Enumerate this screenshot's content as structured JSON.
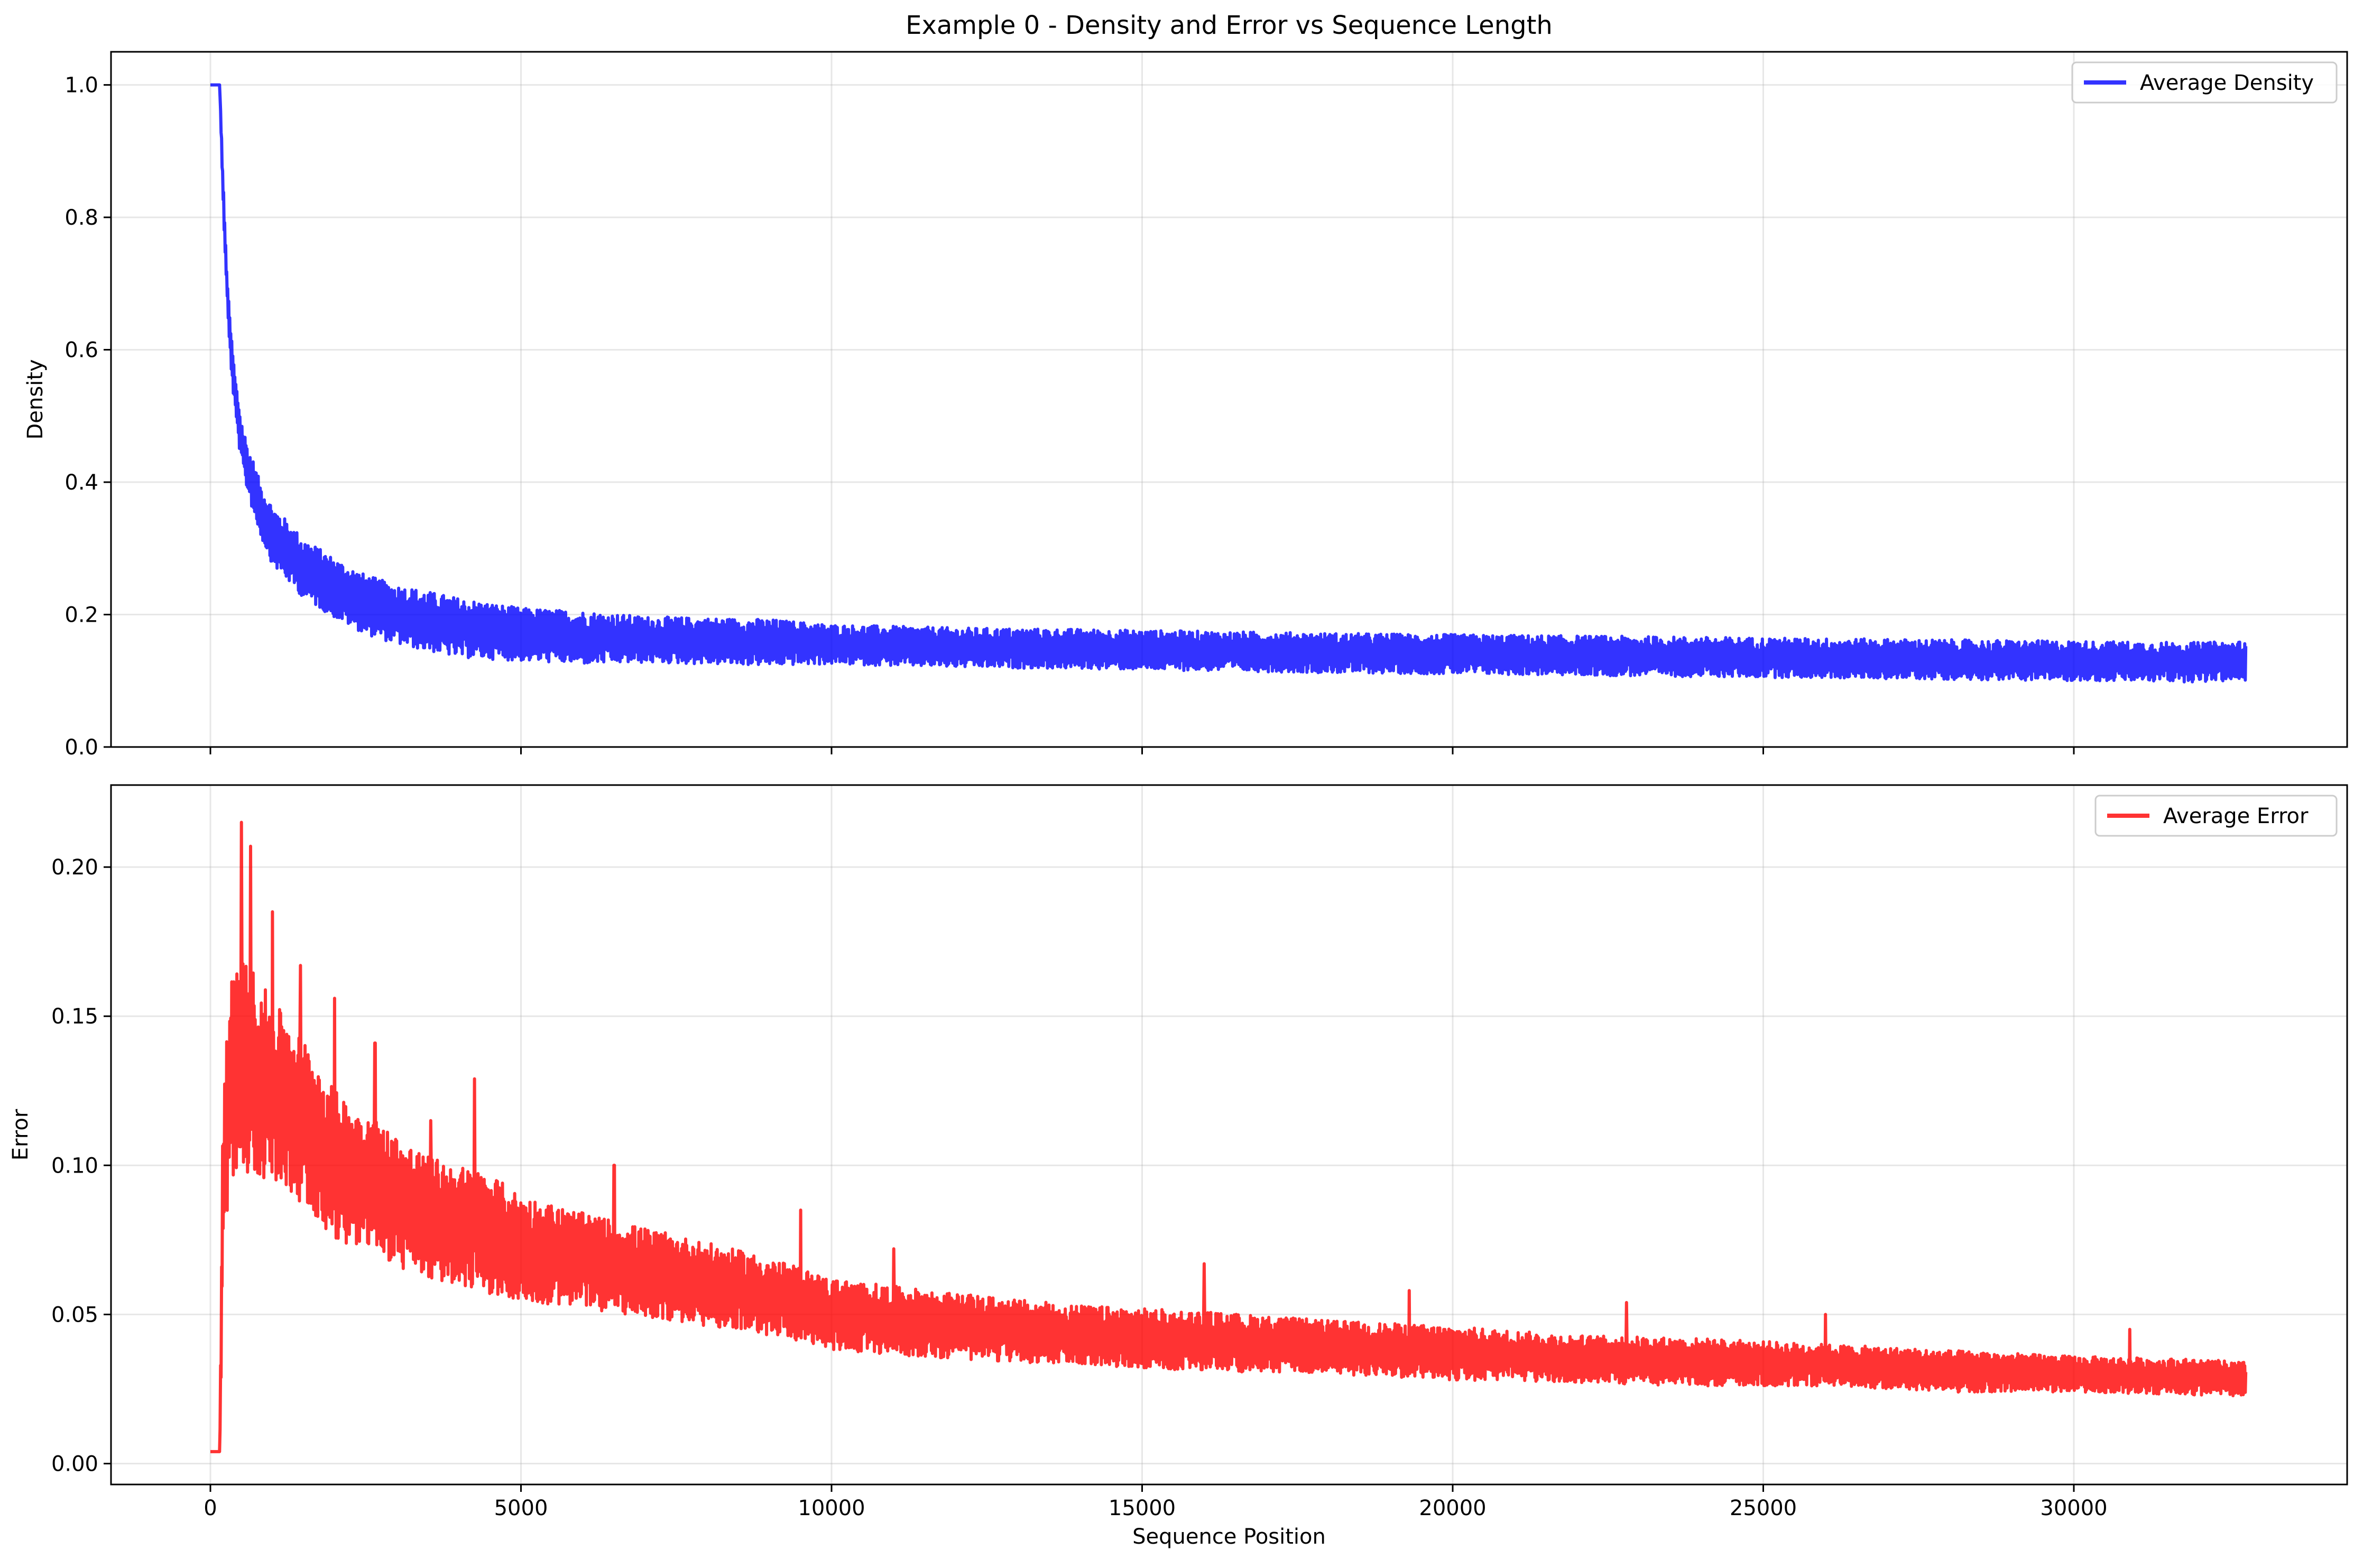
{
  "figure": {
    "title": "Example 0 - Density and Error vs Sequence Length"
  },
  "chart_data": [
    {
      "type": "line",
      "title": "Example 0 - Density and Error vs Sequence Length",
      "xlabel": "",
      "ylabel": "Density",
      "xlim": [
        -1600,
        34400
      ],
      "ylim": [
        0.0,
        1.05
      ],
      "xticks": [
        0,
        5000,
        10000,
        15000,
        20000,
        25000,
        30000
      ],
      "xtick_labels_visible": false,
      "yticks": [
        0.0,
        0.2,
        0.4,
        0.6,
        0.8,
        1.0
      ],
      "ytick_labels": [
        "0.0",
        "0.2",
        "0.4",
        "0.6",
        "0.8",
        "1.0"
      ],
      "grid": true,
      "legend": "top-right",
      "series": [
        {
          "name": "Average Density",
          "color": "#0000ff",
          "x": [
            0,
            100,
            150,
            200,
            250,
            300,
            350,
            400,
            500,
            600,
            700,
            800,
            1000,
            1200,
            1500,
            2000,
            2500,
            3000,
            3500,
            4000,
            5000,
            6000,
            7000,
            8000,
            9000,
            10000,
            12000,
            14000,
            16000,
            18000,
            20000,
            22000,
            24000,
            26000,
            28000,
            30000,
            32000,
            32768
          ],
          "y": [
            1.0,
            1.0,
            1.0,
            0.85,
            0.73,
            0.64,
            0.58,
            0.53,
            0.46,
            0.42,
            0.39,
            0.36,
            0.32,
            0.3,
            0.27,
            0.24,
            0.215,
            0.2,
            0.19,
            0.18,
            0.17,
            0.165,
            0.162,
            0.16,
            0.158,
            0.155,
            0.15,
            0.148,
            0.145,
            0.142,
            0.14,
            0.138,
            0.136,
            0.134,
            0.132,
            0.13,
            0.128,
            0.13
          ],
          "band": [
            0.0,
            0.0,
            0.0,
            0.02,
            0.02,
            0.025,
            0.03,
            0.03,
            0.035,
            0.035,
            0.04,
            0.04,
            0.045,
            0.045,
            0.045,
            0.045,
            0.045,
            0.045,
            0.045,
            0.045,
            0.04,
            0.04,
            0.035,
            0.035,
            0.035,
            0.03,
            0.03,
            0.03,
            0.03,
            0.03,
            0.03,
            0.03,
            0.03,
            0.03,
            0.03,
            0.03,
            0.03,
            0.03
          ]
        }
      ]
    },
    {
      "type": "line",
      "title": "",
      "xlabel": "Sequence Position",
      "ylabel": "Error",
      "xlim": [
        -1600,
        34400
      ],
      "ylim": [
        -0.007,
        0.2275
      ],
      "xticks": [
        0,
        5000,
        10000,
        15000,
        20000,
        25000,
        30000
      ],
      "xtick_labels": [
        "0",
        "5000",
        "10000",
        "15000",
        "20000",
        "25000",
        "30000"
      ],
      "yticks": [
        0.0,
        0.05,
        0.1,
        0.15,
        0.2
      ],
      "ytick_labels": [
        "0.00",
        "0.05",
        "0.10",
        "0.15",
        "0.20"
      ],
      "grid": true,
      "legend": "top-right",
      "series": [
        {
          "name": "Average Error",
          "color": "#ff0000",
          "x": [
            0,
            100,
            150,
            200,
            250,
            300,
            400,
            500,
            700,
            1000,
            1500,
            2000,
            2500,
            3000,
            3500,
            4000,
            4500,
            5000,
            6000,
            7000,
            8000,
            9000,
            10000,
            12000,
            14000,
            16000,
            18000,
            20000,
            22000,
            24000,
            26000,
            28000,
            30000,
            32000,
            32768
          ],
          "y": [
            0.004,
            0.004,
            0.004,
            0.09,
            0.11,
            0.125,
            0.13,
            0.135,
            0.13,
            0.125,
            0.115,
            0.1,
            0.095,
            0.088,
            0.082,
            0.08,
            0.077,
            0.072,
            0.068,
            0.064,
            0.06,
            0.056,
            0.05,
            0.046,
            0.043,
            0.041,
            0.039,
            0.037,
            0.035,
            0.034,
            0.033,
            0.031,
            0.03,
            0.029,
            0.028
          ],
          "band": [
            0.0,
            0.0,
            0.0,
            0.03,
            0.03,
            0.035,
            0.035,
            0.035,
            0.035,
            0.03,
            0.028,
            0.025,
            0.023,
            0.022,
            0.021,
            0.02,
            0.02,
            0.018,
            0.016,
            0.015,
            0.014,
            0.013,
            0.012,
            0.011,
            0.01,
            0.01,
            0.009,
            0.009,
            0.008,
            0.008,
            0.007,
            0.007,
            0.006,
            0.006,
            0.006
          ],
          "spikes": [
            {
              "x": 500,
              "y": 0.215
            },
            {
              "x": 650,
              "y": 0.207
            },
            {
              "x": 1000,
              "y": 0.185
            },
            {
              "x": 1450,
              "y": 0.167
            },
            {
              "x": 2000,
              "y": 0.156
            },
            {
              "x": 2650,
              "y": 0.141
            },
            {
              "x": 3550,
              "y": 0.115
            },
            {
              "x": 4250,
              "y": 0.129
            },
            {
              "x": 6500,
              "y": 0.1
            },
            {
              "x": 9500,
              "y": 0.085
            },
            {
              "x": 11000,
              "y": 0.072
            },
            {
              "x": 16000,
              "y": 0.067
            },
            {
              "x": 19300,
              "y": 0.058
            },
            {
              "x": 22800,
              "y": 0.054
            },
            {
              "x": 26000,
              "y": 0.05
            },
            {
              "x": 30900,
              "y": 0.045
            }
          ]
        }
      ]
    }
  ]
}
